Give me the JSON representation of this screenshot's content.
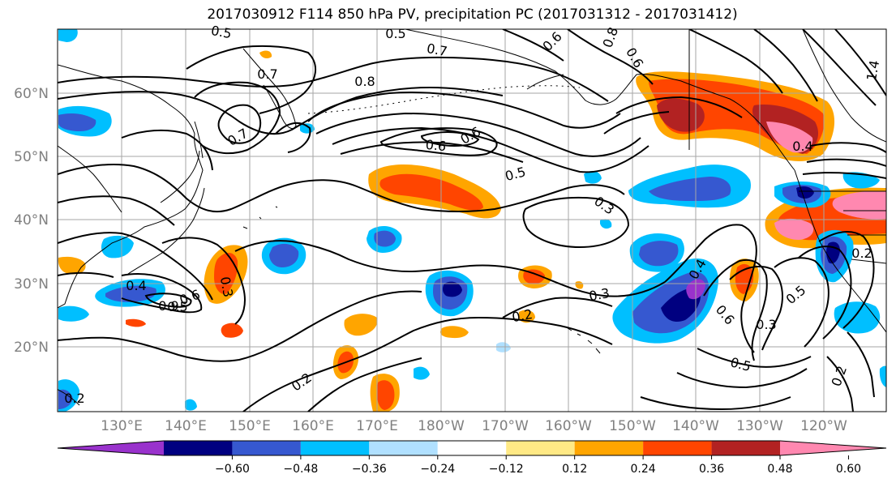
{
  "title": "2017030912 F114 850 hPa PV, precipitation PC (2017031312 - 2017031412)",
  "map": {
    "lat_ticks": [
      "60°N",
      "50°N",
      "40°N",
      "30°N",
      "20°N"
    ],
    "lon_ticks": [
      "130°E",
      "140°E",
      "150°E",
      "160°E",
      "170°E",
      "180°W",
      "170°W",
      "160°W",
      "150°W",
      "140°W",
      "130°W",
      "120°W"
    ],
    "contour_labels": [
      "0.5",
      "0.5",
      "0.7",
      "0.8",
      "0.7",
      "0.6",
      "0.7",
      "0.5",
      "0.3",
      "0.8",
      "0.6",
      "0.6",
      "0.6",
      "0.4",
      "0.5",
      "0.4",
      "0.9",
      "0.6",
      "0.3",
      "0.3",
      "0.2",
      "0.2",
      "0.2",
      "0.4",
      "0.6",
      "0.5",
      "0.3",
      "0.5",
      "0.2",
      "0.2",
      "1.4"
    ]
  },
  "colorbar": {
    "ticks": [
      "−0.60",
      "−0.48",
      "−0.36",
      "−0.24",
      "−0.12",
      "0.12",
      "0.24",
      "0.36",
      "0.48",
      "0.60"
    ],
    "colors": [
      "#9932cc",
      "#000080",
      "#3658d0",
      "#00bfff",
      "#b0e0ff",
      "#ffffff",
      "#ffe985",
      "#ffa500",
      "#ff4500",
      "#b22222",
      "#ff88b0"
    ]
  }
}
